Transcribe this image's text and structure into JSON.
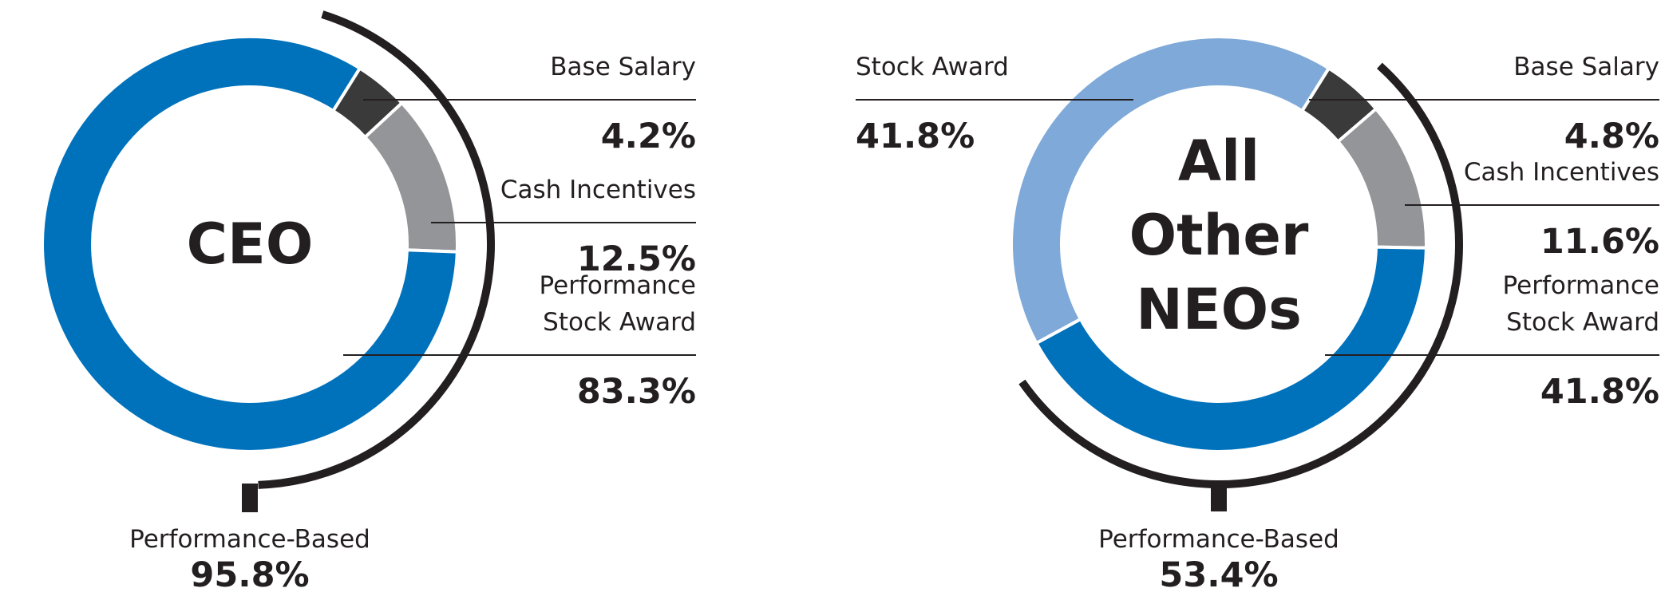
{
  "chart_data": [
    {
      "type": "donut",
      "title": "CEO",
      "title_lines": [
        "CEO"
      ],
      "start_angle_deg": 90,
      "segments": [
        {
          "name": "Base Salary",
          "lines": [
            "Base Salary"
          ],
          "value": 4.2,
          "value_label": "4.2%",
          "color": "#3a3a3a"
        },
        {
          "name": "Cash Incentives",
          "lines": [
            "Cash Incentives"
          ],
          "value": 12.5,
          "value_label": "12.5%",
          "color": "#939598"
        },
        {
          "name": "Performance Stock Award",
          "lines": [
            "Performance",
            "Stock Award"
          ],
          "value": 83.3,
          "value_label": "83.3%",
          "color": "#0072bc"
        }
      ],
      "performance_based": {
        "label": "Performance-Based",
        "value": 95.8,
        "value_label": "95.8%"
      }
    },
    {
      "type": "donut",
      "title": "All Other NEOs",
      "title_lines": [
        "All",
        "Other",
        "NEOs"
      ],
      "start_angle_deg": 90,
      "segments": [
        {
          "name": "Base Salary",
          "lines": [
            "Base Salary"
          ],
          "value": 4.8,
          "value_label": "4.8%",
          "color": "#3a3a3a"
        },
        {
          "name": "Cash Incentives",
          "lines": [
            "Cash Incentives"
          ],
          "value": 11.6,
          "value_label": "11.6%",
          "color": "#939598"
        },
        {
          "name": "Performance Stock Award",
          "lines": [
            "Performance",
            "Stock Award"
          ],
          "value": 41.8,
          "value_label": "41.8%",
          "color": "#0072bc"
        },
        {
          "name": "Stock Award",
          "lines": [
            "Stock Award"
          ],
          "value": 41.8,
          "value_label": "41.8%",
          "color": "#7fa9d8"
        }
      ],
      "performance_based": {
        "label": "Performance-Based",
        "value": 53.4,
        "value_label": "53.4%"
      }
    }
  ]
}
